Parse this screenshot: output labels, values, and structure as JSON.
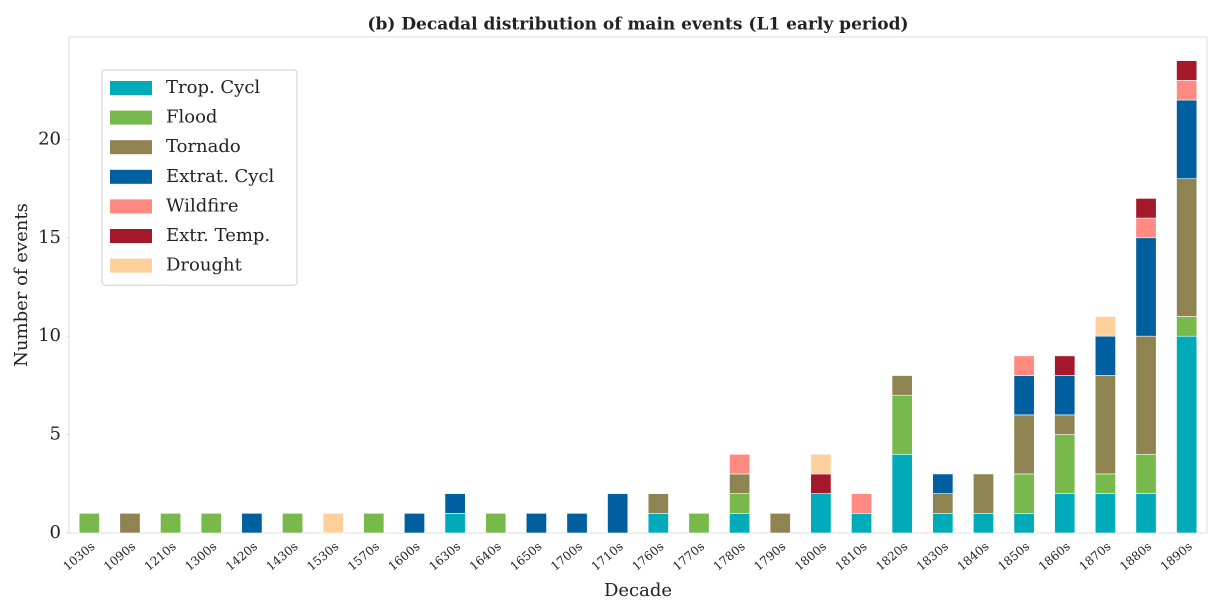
{
  "chart_data": {
    "type": "bar",
    "stacked": true,
    "title": "(b)  Decadal distribution of main events (L1 early period)",
    "xlabel": "Decade",
    "ylabel": "Number of events",
    "categories": [
      "1030s",
      "1090s",
      "1210s",
      "1300s",
      "1420s",
      "1430s",
      "1530s",
      "1570s",
      "1600s",
      "1630s",
      "1640s",
      "1650s",
      "1700s",
      "1710s",
      "1760s",
      "1770s",
      "1780s",
      "1790s",
      "1800s",
      "1810s",
      "1820s",
      "1830s",
      "1840s",
      "1850s",
      "1860s",
      "1870s",
      "1880s",
      "1890s"
    ],
    "series": [
      {
        "name": "Trop. Cycl",
        "color": "#00abb9",
        "values": [
          0,
          0,
          0,
          0,
          0,
          0,
          0,
          0,
          0,
          1,
          0,
          0,
          0,
          0,
          1,
          0,
          1,
          0,
          2,
          1,
          4,
          1,
          1,
          1,
          2,
          2,
          2,
          10
        ]
      },
      {
        "name": "Flood",
        "color": "#77b94a",
        "values": [
          1,
          0,
          1,
          1,
          0,
          1,
          0,
          1,
          0,
          0,
          1,
          0,
          0,
          0,
          0,
          1,
          1,
          0,
          0,
          0,
          3,
          0,
          0,
          2,
          3,
          1,
          2,
          1
        ]
      },
      {
        "name": "Tornado",
        "color": "#8f8352",
        "values": [
          0,
          1,
          0,
          0,
          0,
          0,
          0,
          0,
          0,
          0,
          0,
          0,
          0,
          0,
          1,
          0,
          1,
          1,
          0,
          0,
          1,
          1,
          2,
          3,
          1,
          5,
          6,
          7
        ]
      },
      {
        "name": "Extrat. Cycl",
        "color": "#005f9f",
        "values": [
          0,
          0,
          0,
          0,
          1,
          0,
          0,
          0,
          1,
          1,
          0,
          1,
          1,
          2,
          0,
          0,
          0,
          0,
          0,
          0,
          0,
          1,
          0,
          2,
          2,
          2,
          5,
          4
        ]
      },
      {
        "name": "Wildfire",
        "color": "#ff8a82",
        "values": [
          0,
          0,
          0,
          0,
          0,
          0,
          0,
          0,
          0,
          0,
          0,
          0,
          0,
          0,
          0,
          0,
          1,
          0,
          0,
          1,
          0,
          0,
          0,
          1,
          0,
          0,
          1,
          1
        ]
      },
      {
        "name": "Extr. Temp.",
        "color": "#a3192b",
        "values": [
          0,
          0,
          0,
          0,
          0,
          0,
          0,
          0,
          0,
          0,
          0,
          0,
          0,
          0,
          0,
          0,
          0,
          0,
          1,
          0,
          0,
          0,
          0,
          0,
          1,
          0,
          1,
          1
        ]
      },
      {
        "name": "Drought",
        "color": "#ffd09c",
        "values": [
          0,
          0,
          0,
          0,
          0,
          0,
          1,
          0,
          0,
          0,
          0,
          0,
          0,
          0,
          0,
          0,
          0,
          0,
          1,
          0,
          0,
          0,
          0,
          0,
          0,
          1,
          0,
          0
        ]
      }
    ],
    "ylim": [
      0,
      25.2
    ],
    "yticks": [
      0,
      5,
      10,
      15,
      20
    ],
    "grid": false,
    "legend": "upper left"
  }
}
